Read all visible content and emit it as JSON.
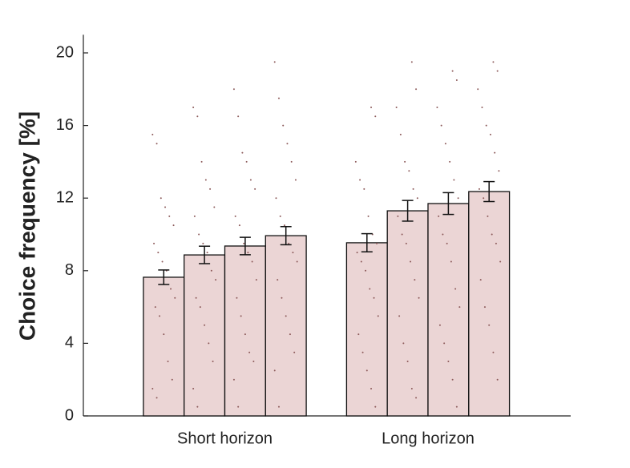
{
  "chart_data": {
    "type": "bar",
    "ylabel": "Choice frequency [%]",
    "categories": [
      "Short horizon",
      "Long horizon"
    ],
    "series": [
      {
        "color": "#ebd5d5",
        "values": [
          7.64,
          9.54
        ],
        "errors": [
          0.4,
          0.5
        ],
        "points": [
          [
            15.5,
            15,
            12,
            11.5,
            11,
            10.5,
            9.5,
            9,
            8.5,
            8,
            7,
            6.5,
            6,
            5.5,
            4.5,
            3,
            2,
            1.5,
            1
          ],
          [
            17,
            16.5,
            14,
            13,
            12.5,
            11,
            10,
            9.5,
            9,
            8.5,
            8,
            7,
            6.5,
            5.5,
            4.5,
            3.5,
            2.5,
            1.5,
            0.5
          ]
        ]
      },
      {
        "color": "#ebd5d5",
        "values": [
          8.87,
          11.3
        ],
        "errors": [
          0.48,
          0.57
        ],
        "points": [
          [
            17,
            16.5,
            14,
            13,
            12.5,
            11.5,
            11,
            10,
            9.5,
            9,
            8,
            7.5,
            6.5,
            6,
            5,
            4,
            3,
            1.5,
            0.5
          ],
          [
            19.5,
            18,
            17,
            15.5,
            14,
            13.5,
            12.5,
            12,
            11,
            10,
            9.5,
            8.5,
            7.5,
            6.5,
            5.5,
            4,
            3,
            1.5,
            1
          ]
        ]
      },
      {
        "color": "#ebd5d5",
        "values": [
          9.36,
          11.7
        ],
        "errors": [
          0.48,
          0.6
        ],
        "points": [
          [
            18,
            16.5,
            14.5,
            14,
            13,
            12.5,
            11,
            10.5,
            9.5,
            9,
            8.5,
            7.5,
            6.5,
            5.5,
            4.5,
            3.5,
            3,
            2,
            0.5
          ],
          [
            19,
            18.5,
            17,
            16,
            15,
            14,
            13,
            12,
            11,
            10,
            9.5,
            8.5,
            7,
            6,
            5,
            4,
            3,
            2,
            0.5
          ]
        ]
      },
      {
        "color": "#ebd5d5",
        "values": [
          9.93,
          12.36
        ],
        "errors": [
          0.5,
          0.55
        ],
        "points": [
          [
            19.5,
            17.5,
            16,
            15,
            14,
            13,
            12,
            11,
            10.5,
            9.5,
            9,
            8.5,
            7.5,
            6.5,
            5.5,
            4.5,
            3.5,
            2.5,
            0.5
          ],
          [
            19.5,
            19,
            18,
            17,
            16,
            15.5,
            14.5,
            13.5,
            12.5,
            12,
            11,
            10,
            9.5,
            8.5,
            7.5,
            6,
            5,
            3.5,
            2
          ]
        ]
      }
    ],
    "ylim": [
      0,
      21
    ],
    "yticks": [
      0,
      4,
      8,
      12,
      16,
      20
    ],
    "grid": false
  }
}
